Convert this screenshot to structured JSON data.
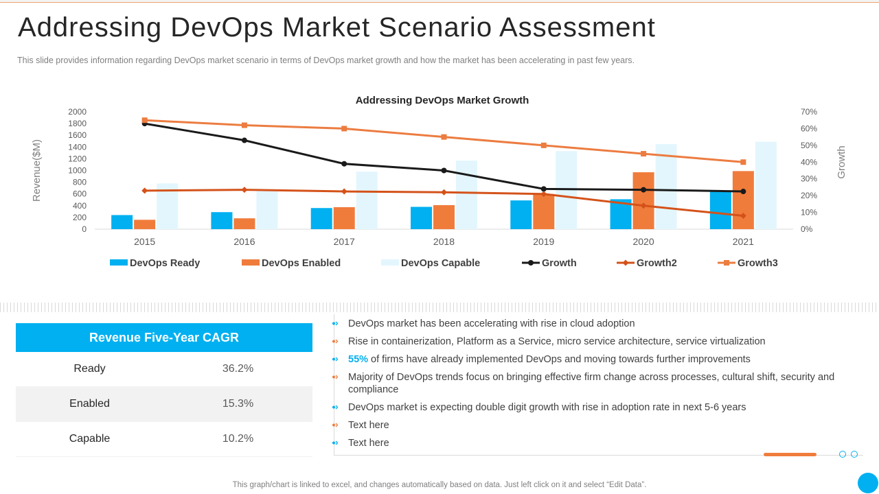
{
  "page": {
    "title": "Addressing DevOps Market Scenario Assessment",
    "subtitle": "This slide provides  information  regarding  DevOps  market  scenario in terms of DevOps  market growth  and how the market has been accelerating in past few  years.",
    "footer": "This graph/chart is linked to excel,  and changes automatically based on data. Just left click on it and select “Edit Data”."
  },
  "colors": {
    "ready": "#00b0f0",
    "enabled": "#f07c3c",
    "capable": "#e3f6fd",
    "growth": "#1a1a1a",
    "growth2": "#d4521a",
    "growth3": "#ec7c40",
    "accent": "#00b0f0"
  },
  "chart_data": {
    "type": "bar",
    "title": "Addressing DevOps Market Growth",
    "categories": [
      "2015",
      "2016",
      "2017",
      "2018",
      "2019",
      "2020",
      "2021"
    ],
    "ylabel": "Revenue($M)",
    "y2label": "Growth",
    "ylim": [
      0,
      2000
    ],
    "yticks": [
      "0",
      "200",
      "400",
      "600",
      "800",
      "1000",
      "1200",
      "1400",
      "1600",
      "1800",
      "2000"
    ],
    "y2lim": [
      0,
      70
    ],
    "y2ticks": [
      "0%",
      "10%",
      "20%",
      "30%",
      "40%",
      "50%",
      "60%",
      "70%"
    ],
    "series": [
      {
        "name": "DevOps Ready",
        "kind": "bar",
        "axis": "left",
        "values": [
          240,
          290,
          360,
          380,
          490,
          510,
          660
        ]
      },
      {
        "name": "DevOps Enabled",
        "kind": "bar",
        "axis": "left",
        "values": [
          160,
          185,
          375,
          410,
          600,
          970,
          990
        ]
      },
      {
        "name": "DevOps Capable",
        "kind": "bar",
        "axis": "left",
        "values": [
          780,
          650,
          980,
          1170,
          1330,
          1450,
          1490
        ]
      },
      {
        "name": "Growth",
        "kind": "line",
        "axis": "right",
        "values": [
          63,
          53,
          39,
          35,
          24,
          23.5,
          22.5
        ]
      },
      {
        "name": "Growth2",
        "kind": "line",
        "axis": "right",
        "values": [
          23,
          23.5,
          22.5,
          22,
          21,
          14,
          8
        ]
      },
      {
        "name": "Growth3",
        "kind": "line",
        "axis": "right",
        "values": [
          65,
          62,
          60,
          55,
          50,
          45,
          40
        ]
      }
    ],
    "legend_position": "bottom"
  },
  "cagr": {
    "title": "Revenue Five-Year CAGR",
    "rows": [
      {
        "label": "Ready",
        "value": "36.2%"
      },
      {
        "label": "Enabled",
        "value": "15.3%"
      },
      {
        "label": "Capable",
        "value": "10.2%"
      }
    ]
  },
  "bullets": [
    {
      "color": "blue",
      "text": "DevOps market has been accelerating with rise in cloud adoption"
    },
    {
      "color": "orange",
      "text": "Rise in containerization, Platform as a Service, micro service architecture, service virtualization"
    },
    {
      "color": "blue",
      "highlight": "55%",
      "text": " of firms have already implemented DevOps and moving towards further improvements"
    },
    {
      "color": "orange",
      "text": "Majority  of DevOps trends focus on bringing  effective firm change across processes, cultural shift, security and compliance"
    },
    {
      "color": "blue",
      "text": "DevOps market is expecting double digit growth with rise in adoption rate in next 5-6 years"
    },
    {
      "color": "orange",
      "text": "Text here"
    },
    {
      "color": "blue",
      "text": "Text here"
    }
  ]
}
